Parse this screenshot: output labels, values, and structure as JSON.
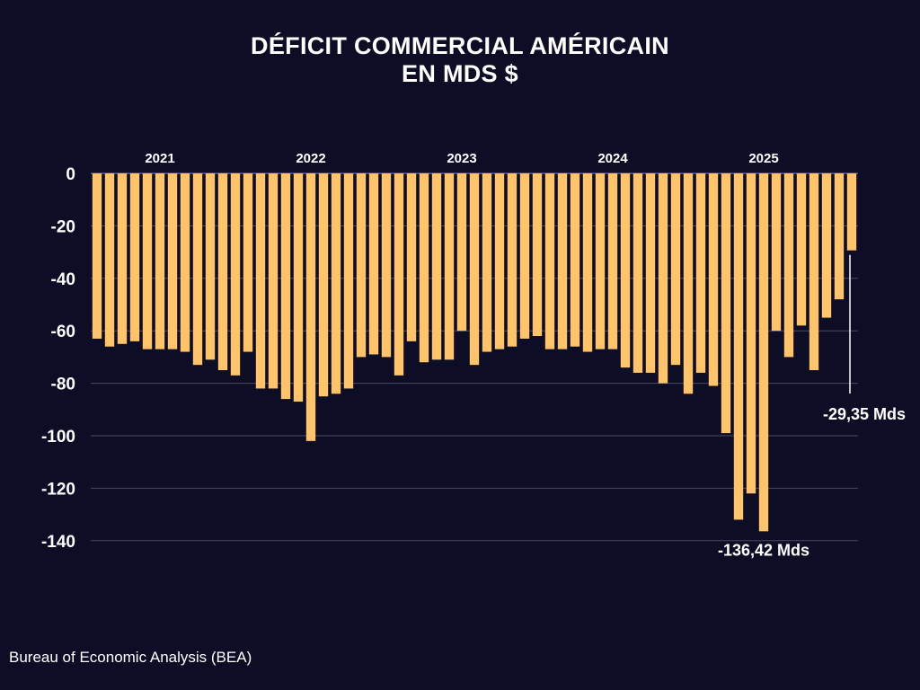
{
  "title_line1": "DÉFICIT COMMERCIAL AMÉRICAIN",
  "title_line2": "EN MDS $",
  "source": "Bureau of Economic Analysis (BEA)",
  "colors": {
    "background": "#0e0d26",
    "bar": "#ffc46b",
    "grid": "#4a4a62"
  },
  "chart_data": {
    "type": "bar",
    "title": "DÉFICIT COMMERCIAL AMÉRICAIN EN MDS $",
    "xlabel": "",
    "ylabel": "",
    "ylim": [
      -140,
      0
    ],
    "yticks": [
      0,
      -20,
      -40,
      -60,
      -80,
      -100,
      -120,
      -140
    ],
    "ytick_labels": [
      "0",
      "-20",
      "-40",
      "-60",
      "-80",
      "-100",
      "-120",
      "-140"
    ],
    "year_labels": [
      {
        "label": "2021",
        "month_index": 5
      },
      {
        "label": "2022",
        "month_index": 17
      },
      {
        "label": "2023",
        "month_index": 29
      },
      {
        "label": "2024",
        "month_index": 41
      },
      {
        "label": "2025",
        "month_index": 53
      }
    ],
    "categories": [
      "2021-01",
      "2021-02",
      "2021-03",
      "2021-04",
      "2021-05",
      "2021-06",
      "2021-07",
      "2021-08",
      "2021-09",
      "2021-10",
      "2021-11",
      "2021-12",
      "2022-01",
      "2022-02",
      "2022-03",
      "2022-04",
      "2022-05",
      "2022-06",
      "2022-07",
      "2022-08",
      "2022-09",
      "2022-10",
      "2022-11",
      "2022-12",
      "2023-01",
      "2023-02",
      "2023-03",
      "2023-04",
      "2023-05",
      "2023-06",
      "2023-07",
      "2023-08",
      "2023-09",
      "2023-10",
      "2023-11",
      "2023-12",
      "2024-01",
      "2024-02",
      "2024-03",
      "2024-04",
      "2024-05",
      "2024-06",
      "2024-07",
      "2024-08",
      "2024-09",
      "2024-10",
      "2024-11",
      "2024-12",
      "2025-01",
      "2025-02",
      "2025-03",
      "2025-04",
      "2025-05",
      "2025-06",
      "2025-07",
      "2025-08",
      "2025-09",
      "2025-10",
      "2025-11",
      "2025-12",
      "2026-01"
    ],
    "values": [
      -63,
      -66,
      -65,
      -64,
      -67,
      -67,
      -67,
      -68,
      -73,
      -71,
      -75,
      -77,
      -68,
      -82,
      -82,
      -86,
      -87,
      -102,
      -85,
      -84,
      -82,
      -70,
      -69,
      -70,
      -77,
      -64,
      -72,
      -71,
      -71,
      -60,
      -73,
      -68,
      -67,
      -66,
      -63,
      -62,
      -67,
      -67,
      -66,
      -68,
      -67,
      -67,
      -74,
      -76,
      -76,
      -80,
      -73,
      -84,
      -76,
      -81,
      -99,
      -132,
      -122,
      -136.42,
      -60,
      -70,
      -58,
      -75,
      -55,
      -48,
      -29.35
    ],
    "annotations": [
      {
        "text": "-136,42 Mds",
        "value": -136.42,
        "index": 53
      },
      {
        "text": "-29,35 Mds",
        "value": -29.35,
        "index": 60
      }
    ]
  }
}
